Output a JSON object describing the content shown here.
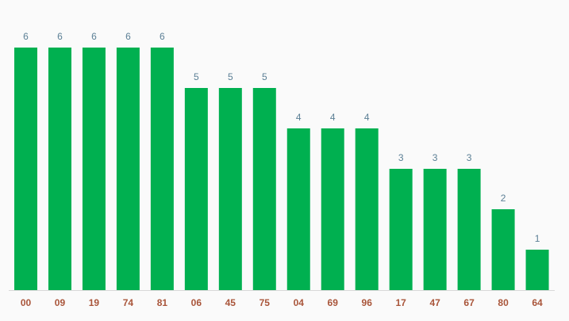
{
  "chart_data": {
    "type": "bar",
    "categories": [
      "00",
      "09",
      "19",
      "74",
      "81",
      "06",
      "45",
      "75",
      "04",
      "69",
      "96",
      "17",
      "47",
      "67",
      "80",
      "64"
    ],
    "values": [
      6,
      6,
      6,
      6,
      6,
      5,
      5,
      5,
      4,
      4,
      4,
      3,
      3,
      3,
      2,
      1
    ],
    "color": "#00b050"
  }
}
